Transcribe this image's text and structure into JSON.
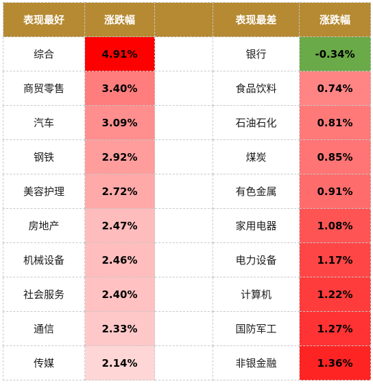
{
  "headers": {
    "best_label": "表现最好",
    "best_change": "涨跌幅",
    "worst_label": "表现最差",
    "worst_change": "涨跌幅"
  },
  "best": [
    {
      "name": "综合",
      "change": "4.91%",
      "color": "#ff0000"
    },
    {
      "name": "商贸零售",
      "change": "3.40%",
      "color": "#ff7d7d"
    },
    {
      "name": "汽车",
      "change": "3.09%",
      "color": "#ff8f8f"
    },
    {
      "name": "钢铁",
      "change": "2.92%",
      "color": "#ff9d9d"
    },
    {
      "name": "美容护理",
      "change": "2.72%",
      "color": "#ffa9a9"
    },
    {
      "name": "房地产",
      "change": "2.47%",
      "color": "#ffbcbc"
    },
    {
      "name": "机械设备",
      "change": "2.46%",
      "color": "#ffbdbd"
    },
    {
      "name": "社会服务",
      "change": "2.40%",
      "color": "#ffc1c1"
    },
    {
      "name": "通信",
      "change": "2.33%",
      "color": "#ffc8c8"
    },
    {
      "name": "传媒",
      "change": "2.14%",
      "color": "#ffd6d6"
    }
  ],
  "worst": [
    {
      "name": "银行",
      "change": "-0.34%",
      "color": "#6aaa48"
    },
    {
      "name": "食品饮料",
      "change": "0.74%",
      "color": "#ff8585"
    },
    {
      "name": "石油石化",
      "change": "0.81%",
      "color": "#ff7979"
    },
    {
      "name": "煤炭",
      "change": "0.85%",
      "color": "#ff7474"
    },
    {
      "name": "有色金属",
      "change": "0.91%",
      "color": "#ff6c6c"
    },
    {
      "name": "家用电器",
      "change": "1.08%",
      "color": "#ff5454"
    },
    {
      "name": "电力设备",
      "change": "1.17%",
      "color": "#ff4646"
    },
    {
      "name": "计算机",
      "change": "1.22%",
      "color": "#ff3c3c"
    },
    {
      "name": "国防军工",
      "change": "1.27%",
      "color": "#ff3333"
    },
    {
      "name": "非银金融",
      "change": "1.36%",
      "color": "#ff2424"
    }
  ]
}
